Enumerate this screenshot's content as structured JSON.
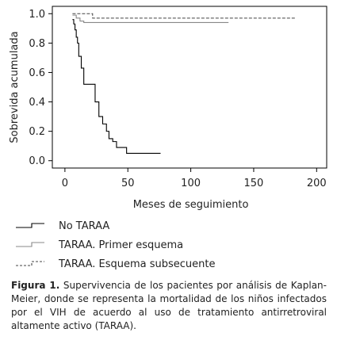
{
  "chart_data": {
    "type": "line",
    "subtype": "step (Kaplan-Meier)",
    "ylabel": "Sobrevida acumulada",
    "xlabel": "Meses de seguimiento",
    "xlim": [
      -10,
      208
    ],
    "ylim": [
      -0.05,
      1.05
    ],
    "xticks": [
      0,
      50,
      100,
      150,
      200
    ],
    "yticks": [
      0.0,
      0.2,
      0.4,
      0.6,
      0.8,
      1.0
    ],
    "ytick_labels": [
      "0.0",
      "0.2",
      "0.4",
      "0.6",
      "0.8",
      "1.0"
    ],
    "grid": false,
    "legend_position": "below",
    "series": [
      {
        "name": "No TARAA",
        "style": "solid",
        "color": "#000000",
        "x": [
          6,
          7,
          8,
          9,
          10,
          11,
          13,
          15,
          21,
          24,
          27,
          30,
          33,
          35,
          38,
          41,
          49,
          76
        ],
        "y": [
          0.96,
          0.93,
          0.89,
          0.84,
          0.8,
          0.71,
          0.63,
          0.52,
          0.52,
          0.4,
          0.3,
          0.25,
          0.2,
          0.15,
          0.13,
          0.09,
          0.05,
          0.05
        ]
      },
      {
        "name": "TARAA. Primer esquema",
        "style": "solid",
        "color": "#888888",
        "x": [
          6,
          9,
          12,
          15,
          130
        ],
        "y": [
          0.99,
          0.97,
          0.95,
          0.94,
          0.94
        ]
      },
      {
        "name": "TARAA. Esquema subsecuente",
        "style": "dashed",
        "color": "#444444",
        "x": [
          6,
          20,
          22,
          183
        ],
        "y": [
          1.0,
          1.0,
          0.97,
          0.97
        ]
      }
    ]
  },
  "caption": {
    "label": "Figura 1.",
    "text": "Supervivencia de los pacientes por análisis de Kaplan-Meier, donde se  representa la mortalidad de los niños infectados por el VIH de acuerdo al uso de tratamiento antirretroviral altamente activo (TARAA)."
  }
}
